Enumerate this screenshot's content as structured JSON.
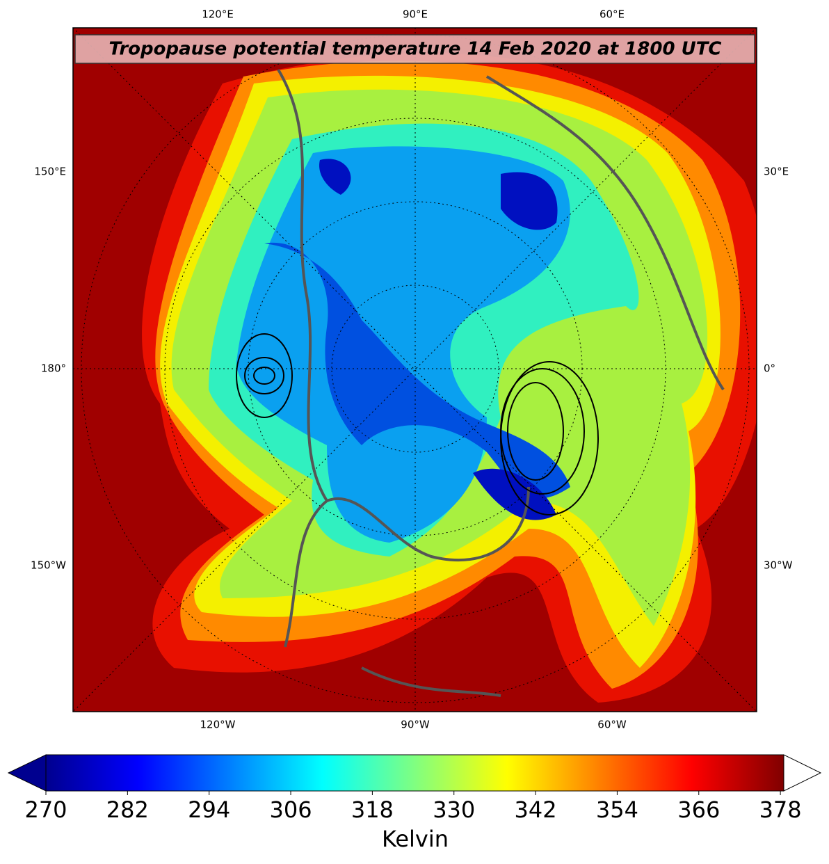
{
  "title": "Tropopause potential temperature 14 Feb 2020 at 1800 UTC",
  "map": {
    "top_labels": [
      "120°E",
      "90°E",
      "60°E"
    ],
    "bottom_labels": [
      "120°W",
      "90°W",
      "60°W"
    ],
    "left_labels": [
      "150°E",
      "180°",
      "150°W"
    ],
    "right_labels": [
      "30°E",
      "0°",
      "30°W"
    ]
  },
  "colorbar": {
    "label": "Kelvin",
    "lim": [
      270,
      378.5
    ],
    "ticks": [
      270,
      282,
      294,
      306,
      318,
      330,
      342,
      354,
      366,
      378
    ],
    "colors": [
      "#00008f",
      "#0000ff",
      "#0080ff",
      "#00ffff",
      "#80ff80",
      "#ffff00",
      "#ff8000",
      "#ff0000",
      "#800000"
    ],
    "under_color": "#00008f",
    "over_color": "#ffffff"
  }
}
